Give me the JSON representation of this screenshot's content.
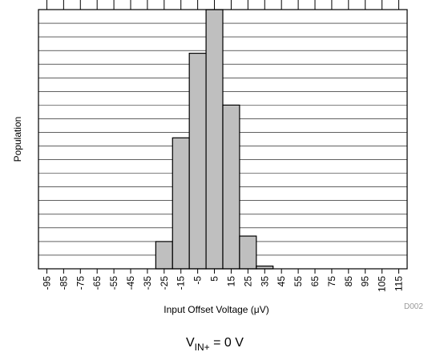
{
  "chart_data": {
    "type": "histogram",
    "xlabel": "Input Offset Voltage (μV)",
    "ylabel": "Population",
    "source": "D002",
    "annotation": {
      "main": "V",
      "sub": "IN+",
      "rest": " = 0 V"
    },
    "bins": [
      -100,
      -90,
      -80,
      -70,
      -60,
      -50,
      -40,
      -30,
      -20,
      -10,
      0,
      10,
      20,
      30,
      40,
      50,
      60,
      70,
      80,
      90,
      100,
      110,
      120
    ],
    "counts": [
      0,
      0,
      0,
      0,
      0,
      0,
      0,
      2,
      9.6,
      15.8,
      19,
      12,
      2.4,
      0.2,
      0,
      0,
      0,
      0,
      0,
      0,
      0,
      0
    ],
    "color": "#bfbfbf",
    "xlim": [
      -100,
      120
    ],
    "xticks": [
      -95,
      -85,
      -75,
      -65,
      -55,
      -45,
      -35,
      -25,
      -15,
      -5,
      5,
      15,
      25,
      35,
      45,
      55,
      65,
      75,
      85,
      95,
      105,
      115
    ],
    "ylim": [
      0,
      19
    ],
    "yticks": [
      0,
      1,
      2,
      3,
      4,
      5,
      6,
      7,
      8,
      9,
      10,
      11,
      12,
      13,
      14,
      15,
      16,
      17,
      18,
      19
    ],
    "grid": true
  }
}
